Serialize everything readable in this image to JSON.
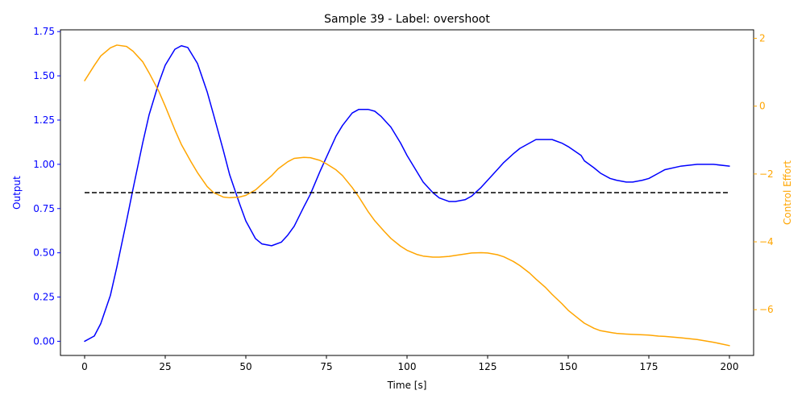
{
  "chart_data": {
    "type": "line",
    "title": "Sample 39 - Label: overshoot",
    "xlabel": "Time [s]",
    "ylabel_left": "Output",
    "ylabel_right": "Control Effort",
    "xlim": [
      -7.5,
      207.5
    ],
    "ylim_left": [
      -0.08,
      1.76
    ],
    "ylim_right": [
      -7.35,
      2.25
    ],
    "x_ticks": [
      0,
      25,
      50,
      75,
      100,
      125,
      150,
      175,
      200
    ],
    "y_ticks_left": [
      0.0,
      0.25,
      0.5,
      0.75,
      1.0,
      1.25,
      1.5,
      1.75
    ],
    "y_ticks_right": [
      -6,
      -4,
      -2,
      0,
      2
    ],
    "x_tick_labels": [
      "0",
      "25",
      "50",
      "75",
      "100",
      "125",
      "150",
      "175",
      "200"
    ],
    "y_tick_labels_left": [
      "0.00",
      "0.25",
      "0.50",
      "0.75",
      "1.00",
      "1.25",
      "1.50",
      "1.75"
    ],
    "y_tick_labels_right": [
      "−6",
      "−4",
      "−2",
      "0",
      "2"
    ],
    "grid": false,
    "colors": {
      "output": "#0000ff",
      "control": "#ffa500",
      "setpoint": "#000000",
      "left_axis": "#0000ff",
      "right_axis": "#ffa500"
    },
    "series": [
      {
        "axis": "left",
        "style": "solid",
        "x": [
          0,
          3,
          5,
          8,
          10,
          13,
          15,
          18,
          20,
          23,
          25,
          28,
          30,
          32,
          35,
          38,
          40,
          43,
          45,
          48,
          50,
          53,
          55,
          58,
          61,
          63,
          65,
          68,
          70,
          73,
          75,
          78,
          80,
          83,
          85,
          88,
          90,
          92,
          95,
          98,
          100,
          103,
          105,
          108,
          110,
          113,
          115,
          118,
          120,
          123,
          125,
          128,
          130,
          133,
          135,
          138,
          140,
          143,
          145,
          148,
          150,
          154,
          155,
          158,
          160,
          163,
          165,
          168,
          170,
          173,
          175,
          178,
          180,
          185,
          190,
          195,
          200
        ],
        "values": [
          0.0,
          0.03,
          0.1,
          0.26,
          0.42,
          0.68,
          0.86,
          1.12,
          1.28,
          1.46,
          1.56,
          1.65,
          1.67,
          1.66,
          1.57,
          1.41,
          1.28,
          1.08,
          0.94,
          0.78,
          0.68,
          0.58,
          0.55,
          0.54,
          0.56,
          0.6,
          0.65,
          0.76,
          0.83,
          0.96,
          1.04,
          1.16,
          1.22,
          1.29,
          1.31,
          1.31,
          1.3,
          1.27,
          1.21,
          1.12,
          1.05,
          0.96,
          0.9,
          0.84,
          0.81,
          0.79,
          0.79,
          0.8,
          0.82,
          0.87,
          0.91,
          0.97,
          1.01,
          1.06,
          1.09,
          1.12,
          1.14,
          1.14,
          1.14,
          1.12,
          1.1,
          1.05,
          1.02,
          0.98,
          0.95,
          0.92,
          0.91,
          0.9,
          0.9,
          0.91,
          0.92,
          0.95,
          0.97,
          0.99,
          1.0,
          1.0,
          0.99
        ]
      },
      {
        "axis": "right",
        "style": "solid",
        "x": [
          0,
          3,
          5,
          8,
          10,
          13,
          15,
          18,
          20,
          23,
          25,
          28,
          30,
          33,
          35,
          38,
          40,
          43,
          45,
          48,
          50,
          53,
          55,
          58,
          60,
          63,
          65,
          68,
          70,
          73,
          75,
          78,
          80,
          83,
          85,
          88,
          90,
          93,
          95,
          98,
          100,
          103,
          105,
          108,
          110,
          113,
          115,
          118,
          120,
          123,
          125,
          128,
          130,
          133,
          135,
          138,
          140,
          143,
          145,
          148,
          150,
          153,
          155,
          158,
          160,
          163,
          165,
          168,
          170,
          173,
          175,
          178,
          180,
          185,
          190,
          195,
          200
        ],
        "values": [
          0.75,
          1.2,
          1.48,
          1.72,
          1.8,
          1.76,
          1.62,
          1.31,
          0.98,
          0.44,
          0.0,
          -0.7,
          -1.13,
          -1.64,
          -1.96,
          -2.37,
          -2.55,
          -2.68,
          -2.7,
          -2.68,
          -2.63,
          -2.47,
          -2.3,
          -2.05,
          -1.85,
          -1.64,
          -1.54,
          -1.51,
          -1.52,
          -1.6,
          -1.7,
          -1.88,
          -2.05,
          -2.4,
          -2.67,
          -3.12,
          -3.38,
          -3.7,
          -3.9,
          -4.13,
          -4.25,
          -4.37,
          -4.42,
          -4.45,
          -4.45,
          -4.43,
          -4.4,
          -4.36,
          -4.33,
          -4.32,
          -4.33,
          -4.38,
          -4.44,
          -4.58,
          -4.7,
          -4.92,
          -5.1,
          -5.35,
          -5.55,
          -5.82,
          -6.02,
          -6.25,
          -6.4,
          -6.55,
          -6.62,
          -6.67,
          -6.7,
          -6.72,
          -6.73,
          -6.74,
          -6.75,
          -6.78,
          -6.79,
          -6.83,
          -6.88,
          -6.96,
          -7.06
        ]
      },
      {
        "axis": "left",
        "style": "dashed",
        "x": [
          0,
          200
        ],
        "values": [
          0.84,
          0.84
        ]
      }
    ]
  }
}
